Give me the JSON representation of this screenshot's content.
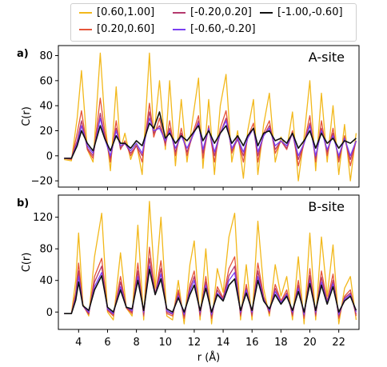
{
  "chart_data": [
    {
      "panel": "a)",
      "type": "line",
      "title": "A-site",
      "ylabel": "C(r)",
      "xlabel": "",
      "xlim": [
        2.6,
        23.4
      ],
      "ylim": [
        -25,
        88
      ],
      "yticks": [
        -20,
        0,
        20,
        40,
        60,
        80
      ],
      "xticks": [
        4,
        6,
        8,
        10,
        12,
        14,
        16,
        18,
        20,
        22
      ],
      "x": [
        3,
        3.5,
        3.9,
        4.2,
        4.6,
        5.0,
        5.5,
        5.8,
        6.2,
        6.6,
        6.9,
        7.2,
        7.6,
        8.0,
        8.4,
        8.9,
        9.2,
        9.6,
        10.0,
        10.3,
        10.7,
        11.1,
        11.5,
        11.9,
        12.3,
        12.6,
        13.0,
        13.4,
        13.8,
        14.2,
        14.6,
        15.0,
        15.4,
        15.7,
        16.1,
        16.4,
        16.8,
        17.2,
        17.6,
        18.0,
        18.4,
        18.8,
        19.2,
        19.6,
        20.0,
        20.4,
        20.8,
        21.2,
        21.6,
        22.0,
        22.4,
        22.8,
        23.2
      ],
      "series": [
        {
          "name": "[0.60,1.00]",
          "color": "#f2b81b",
          "values": [
            -3,
            -4,
            30,
            68,
            5,
            -5,
            82,
            30,
            -12,
            55,
            5,
            18,
            -3,
            10,
            -15,
            82,
            15,
            60,
            5,
            60,
            -8,
            45,
            -5,
            30,
            62,
            -10,
            45,
            -15,
            40,
            65,
            -5,
            20,
            -18,
            20,
            45,
            -15,
            25,
            50,
            -5,
            15,
            5,
            35,
            -20,
            15,
            60,
            -12,
            50,
            -5,
            40,
            -15,
            25,
            -20,
            18
          ]
        },
        {
          "name": "[0.20,0.60]",
          "color": "#e5553a",
          "values": [
            -2,
            -3,
            18,
            36,
            5,
            -2,
            46,
            20,
            -5,
            28,
            5,
            12,
            0,
            8,
            -5,
            42,
            15,
            30,
            8,
            28,
            0,
            22,
            0,
            18,
            32,
            -2,
            24,
            -5,
            22,
            36,
            2,
            15,
            -5,
            15,
            26,
            -5,
            18,
            28,
            2,
            12,
            5,
            20,
            -8,
            10,
            32,
            -5,
            28,
            0,
            22,
            -5,
            16,
            -8,
            12
          ]
        },
        {
          "name": "[-0.20,0.20]",
          "color": "#b53a6e",
          "values": [
            -2,
            -2,
            12,
            28,
            6,
            0,
            34,
            16,
            -2,
            22,
            6,
            10,
            2,
            8,
            0,
            35,
            18,
            24,
            10,
            22,
            3,
            18,
            3,
            16,
            28,
            2,
            22,
            0,
            18,
            30,
            4,
            13,
            0,
            14,
            22,
            0,
            16,
            24,
            5,
            12,
            6,
            18,
            -3,
            10,
            26,
            -2,
            22,
            3,
            18,
            -2,
            14,
            -3,
            12
          ]
        },
        {
          "name": "[-0.60,-0.20]",
          "color": "#7a3ff2",
          "values": [
            -2,
            -2,
            10,
            24,
            8,
            2,
            30,
            14,
            0,
            20,
            8,
            10,
            4,
            10,
            2,
            30,
            20,
            22,
            12,
            20,
            6,
            16,
            6,
            16,
            26,
            5,
            22,
            3,
            18,
            28,
            6,
            14,
            3,
            14,
            22,
            3,
            16,
            22,
            8,
            12,
            8,
            18,
            0,
            10,
            24,
            0,
            20,
            5,
            16,
            0,
            14,
            0,
            12
          ]
        },
        {
          "name": "[-1.00,-0.60]",
          "color": "#111111",
          "values": [
            -2,
            -2,
            8,
            20,
            10,
            4,
            24,
            14,
            4,
            16,
            10,
            10,
            6,
            12,
            8,
            26,
            22,
            35,
            14,
            18,
            10,
            16,
            12,
            18,
            24,
            12,
            20,
            10,
            18,
            24,
            10,
            16,
            8,
            16,
            22,
            8,
            18,
            20,
            12,
            14,
            10,
            18,
            6,
            12,
            20,
            6,
            18,
            10,
            14,
            6,
            12,
            10,
            14
          ]
        }
      ]
    },
    {
      "panel": "b)",
      "type": "line",
      "title": "B-site",
      "ylabel": "C(r)",
      "xlabel": "r (Å)",
      "xlim": [
        2.6,
        23.4
      ],
      "ylim": [
        -22,
        148
      ],
      "yticks": [
        0,
        40,
        80,
        120
      ],
      "xticks": [
        4,
        6,
        8,
        10,
        12,
        14,
        16,
        18,
        20,
        22
      ],
      "x": [
        3,
        3.5,
        3.8,
        4.0,
        4.3,
        4.7,
        5.1,
        5.6,
        6.0,
        6.4,
        6.9,
        7.3,
        7.7,
        8.1,
        8.5,
        8.9,
        9.3,
        9.7,
        10.1,
        10.5,
        10.9,
        11.3,
        11.7,
        12.0,
        12.4,
        12.8,
        13.2,
        13.6,
        14.0,
        14.4,
        14.8,
        15.2,
        15.6,
        16.0,
        16.4,
        16.8,
        17.2,
        17.6,
        18.0,
        18.4,
        18.8,
        19.2,
        19.6,
        20.0,
        20.4,
        20.8,
        21.2,
        21.6,
        22.0,
        22.4,
        22.8,
        23.2
      ],
      "series": [
        {
          "name": "[0.60,1.00]",
          "color": "#f2b81b",
          "values": [
            -2,
            -2,
            40,
            100,
            10,
            -5,
            70,
            125,
            0,
            -10,
            75,
            5,
            -5,
            110,
            -10,
            140,
            30,
            120,
            -5,
            -10,
            40,
            -15,
            60,
            90,
            -10,
            80,
            -15,
            55,
            25,
            95,
            125,
            -10,
            60,
            -10,
            115,
            30,
            -5,
            60,
            20,
            45,
            -10,
            70,
            -15,
            100,
            -10,
            95,
            20,
            85,
            -15,
            30,
            45,
            -10
          ]
        },
        {
          "name": "[0.20,0.60]",
          "color": "#e5553a",
          "values": [
            -2,
            -2,
            25,
            62,
            8,
            -3,
            45,
            68,
            2,
            -5,
            45,
            5,
            -2,
            62,
            -5,
            82,
            22,
            65,
            -2,
            -5,
            28,
            -8,
            35,
            52,
            -5,
            45,
            -8,
            32,
            18,
            55,
            70,
            -5,
            35,
            -5,
            62,
            20,
            -2,
            35,
            14,
            28,
            -5,
            40,
            -8,
            55,
            -5,
            52,
            14,
            48,
            -8,
            20,
            28,
            -5
          ]
        },
        {
          "name": "[-0.20,0.20]",
          "color": "#b53a6e",
          "values": [
            -2,
            -2,
            20,
            52,
            8,
            -2,
            38,
            58,
            3,
            -3,
            38,
            6,
            0,
            52,
            -3,
            68,
            22,
            55,
            0,
            -3,
            24,
            -5,
            30,
            45,
            -3,
            38,
            -5,
            28,
            16,
            46,
            58,
            -3,
            30,
            -3,
            52,
            18,
            0,
            30,
            12,
            24,
            -3,
            34,
            -5,
            46,
            -3,
            44,
            12,
            40,
            -5,
            18,
            24,
            -3
          ]
        },
        {
          "name": "[-0.60,-0.20]",
          "color": "#7a3ff2",
          "values": [
            -2,
            -2,
            18,
            45,
            8,
            0,
            32,
            50,
            4,
            -2,
            32,
            6,
            2,
            45,
            0,
            58,
            22,
            48,
            2,
            -2,
            20,
            -3,
            26,
            40,
            0,
            34,
            -3,
            24,
            15,
            40,
            50,
            0,
            28,
            0,
            45,
            16,
            2,
            26,
            12,
            22,
            0,
            30,
            -3,
            40,
            0,
            38,
            12,
            36,
            -3,
            16,
            22,
            0
          ]
        },
        {
          "name": "[-1.00,-0.60]",
          "color": "#111111",
          "values": [
            -2,
            -2,
            15,
            38,
            8,
            2,
            28,
            46,
            6,
            0,
            28,
            6,
            4,
            40,
            2,
            54,
            22,
            42,
            4,
            0,
            18,
            0,
            22,
            34,
            2,
            30,
            0,
            22,
            14,
            34,
            42,
            2,
            24,
            2,
            40,
            14,
            4,
            22,
            10,
            20,
            2,
            26,
            0,
            36,
            2,
            34,
            10,
            32,
            0,
            14,
            20,
            2
          ]
        }
      ]
    }
  ],
  "legend": {
    "entries": [
      {
        "label": "[0.60,1.00]",
        "color": "#f2b81b"
      },
      {
        "label": "[-0.20,0.20]",
        "color": "#b53a6e"
      },
      {
        "label": "[-1.00,-0.60]",
        "color": "#111111"
      },
      {
        "label": "[0.20,0.60]",
        "color": "#e5553a"
      },
      {
        "label": "[-0.60,-0.20]",
        "color": "#7a3ff2"
      }
    ]
  }
}
